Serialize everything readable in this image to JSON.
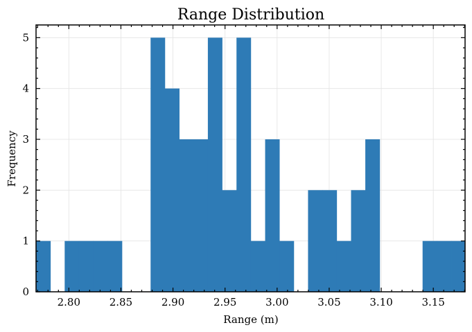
{
  "chart_data": {
    "type": "bar",
    "title": "Range Distribution",
    "xlabel": "Range (m)",
    "ylabel": "Frequency",
    "xlim": [
      2.7685,
      3.1805
    ],
    "ylim": [
      0,
      5.25
    ],
    "xticks": [
      "2.80",
      "2.85",
      "2.90",
      "2.95",
      "3.00",
      "3.05",
      "3.10",
      "3.15"
    ],
    "yticks": [
      "0",
      "1",
      "2",
      "3",
      "4",
      "5"
    ],
    "grid": true,
    "bar_color": "#2e7bb6",
    "bins": [
      {
        "start": 2.7685,
        "end": 2.7823,
        "count": 1
      },
      {
        "start": 2.7823,
        "end": 2.796,
        "count": 0
      },
      {
        "start": 2.796,
        "end": 2.8097,
        "count": 1
      },
      {
        "start": 2.8097,
        "end": 2.8235,
        "count": 1
      },
      {
        "start": 2.8235,
        "end": 2.8372,
        "count": 1
      },
      {
        "start": 2.8372,
        "end": 2.851,
        "count": 1
      },
      {
        "start": 2.851,
        "end": 2.8647,
        "count": 0
      },
      {
        "start": 2.8647,
        "end": 2.8785,
        "count": 0
      },
      {
        "start": 2.8785,
        "end": 2.8922,
        "count": 5
      },
      {
        "start": 2.8922,
        "end": 2.906,
        "count": 4
      },
      {
        "start": 2.906,
        "end": 2.9197,
        "count": 3
      },
      {
        "start": 2.9197,
        "end": 2.9335,
        "count": 3
      },
      {
        "start": 2.9335,
        "end": 2.9472,
        "count": 5
      },
      {
        "start": 2.9472,
        "end": 2.961,
        "count": 2
      },
      {
        "start": 2.961,
        "end": 2.9747,
        "count": 5
      },
      {
        "start": 2.9747,
        "end": 2.9885,
        "count": 1
      },
      {
        "start": 2.9885,
        "end": 3.0022,
        "count": 3
      },
      {
        "start": 3.0022,
        "end": 3.016,
        "count": 1
      },
      {
        "start": 3.016,
        "end": 3.0297,
        "count": 0
      },
      {
        "start": 3.0297,
        "end": 3.0435,
        "count": 2
      },
      {
        "start": 3.0435,
        "end": 3.0572,
        "count": 2
      },
      {
        "start": 3.0572,
        "end": 3.071,
        "count": 1
      },
      {
        "start": 3.071,
        "end": 3.0847,
        "count": 2
      },
      {
        "start": 3.0847,
        "end": 3.0985,
        "count": 3
      },
      {
        "start": 3.0985,
        "end": 3.1122,
        "count": 0
      },
      {
        "start": 3.1122,
        "end": 3.126,
        "count": 0
      },
      {
        "start": 3.126,
        "end": 3.1397,
        "count": 0
      },
      {
        "start": 3.1397,
        "end": 3.1535,
        "count": 1
      },
      {
        "start": 3.1535,
        "end": 3.1672,
        "count": 1
      },
      {
        "start": 3.1672,
        "end": 3.1805,
        "count": 1
      }
    ]
  }
}
